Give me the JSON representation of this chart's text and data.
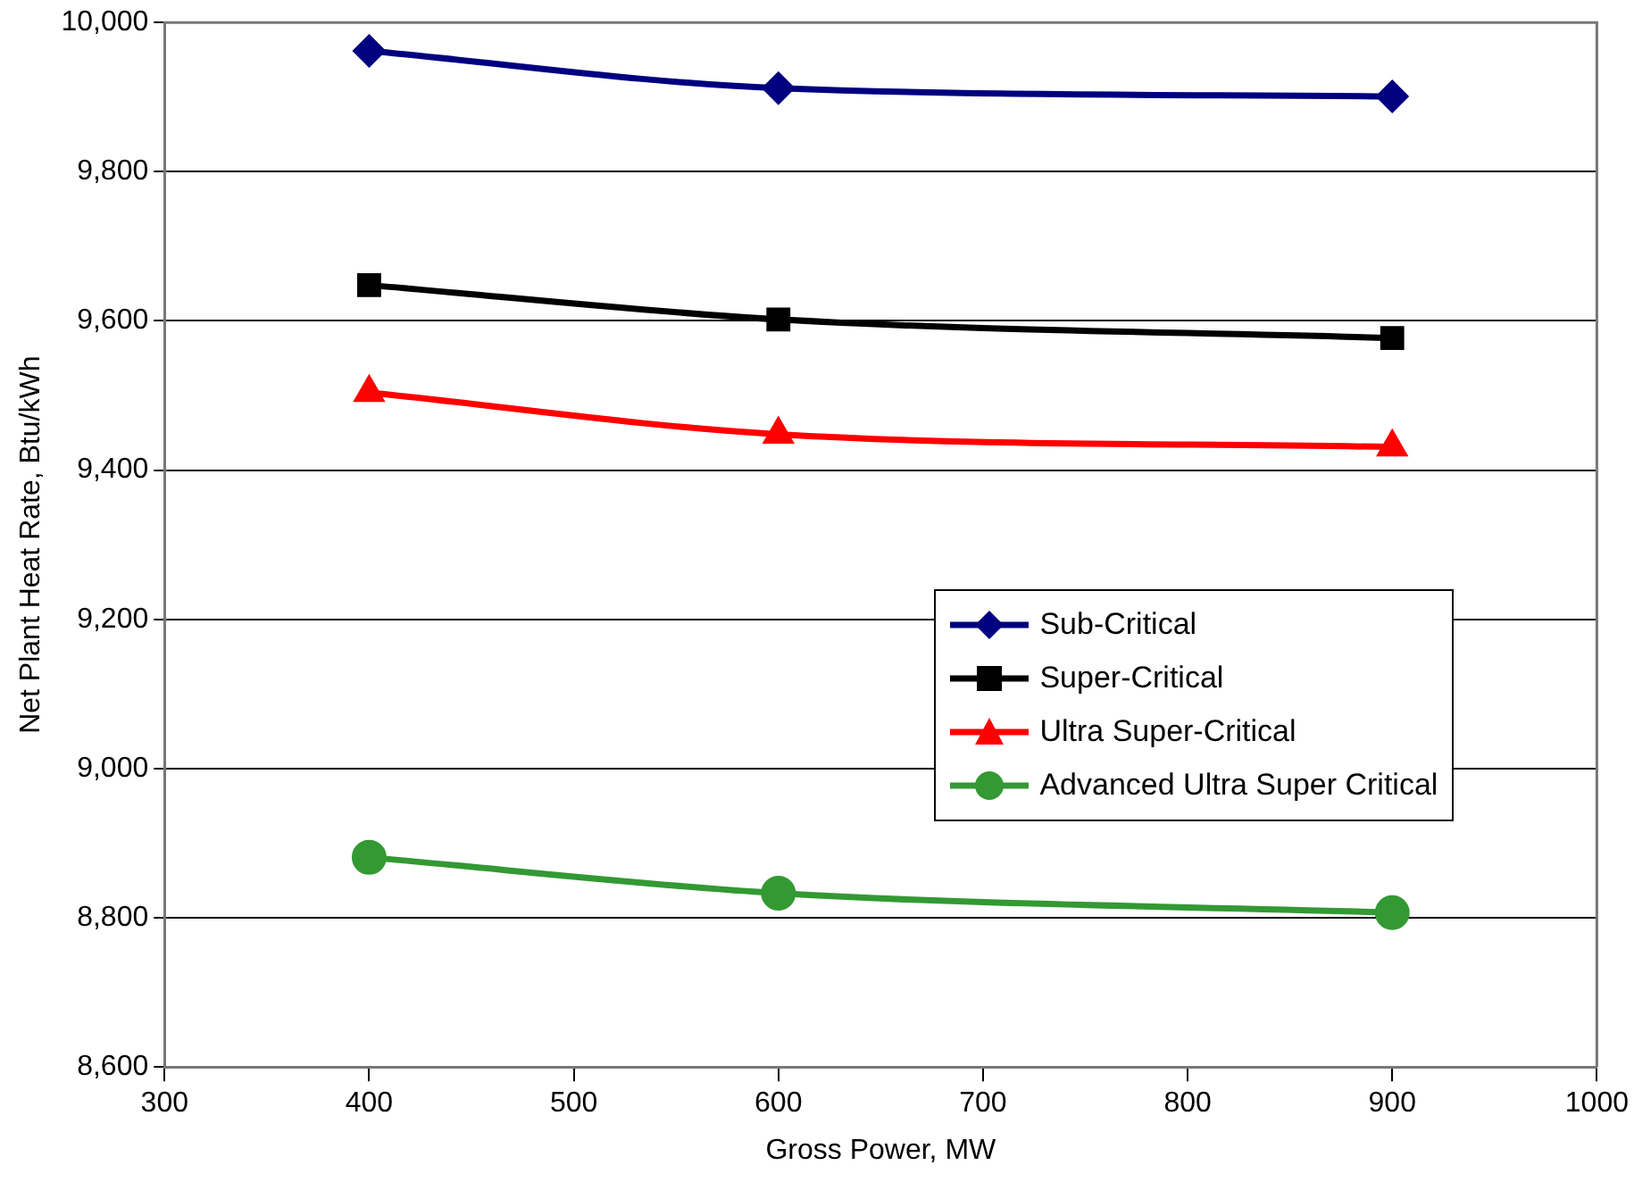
{
  "chart_data": {
    "type": "line",
    "xlabel": "Gross Power, MW",
    "ylabel": "Net Plant Heat Rate, Btu/kWh",
    "x": [
      400,
      600,
      900
    ],
    "series": [
      {
        "name": "Sub-Critical",
        "color": "#000080",
        "marker": "diamond",
        "values": [
          9962,
          9912,
          9901
        ]
      },
      {
        "name": "Super-Critical",
        "color": "#000000",
        "marker": "square",
        "values": [
          9648,
          9602,
          9577
        ]
      },
      {
        "name": "Ultra Super-Critical",
        "color": "#ff0000",
        "marker": "triangle",
        "values": [
          9504,
          9448,
          9431
        ]
      },
      {
        "name": "Advanced Ultra Super Critical",
        "color": "#339933",
        "marker": "circle",
        "values": [
          8881,
          8833,
          8807
        ]
      }
    ],
    "xlim": [
      300,
      1000
    ],
    "xticks": [
      300,
      400,
      500,
      600,
      700,
      800,
      900,
      1000
    ],
    "ylim": [
      8600,
      10000
    ],
    "yticks": [
      {
        "value": 8600,
        "label": "8,600"
      },
      {
        "value": 8800,
        "label": "8,800"
      },
      {
        "value": 9000,
        "label": "9,000"
      },
      {
        "value": 9200,
        "label": "9,200"
      },
      {
        "value": 9400,
        "label": "9,400"
      },
      {
        "value": 9600,
        "label": "9,600"
      },
      {
        "value": 9800,
        "label": "9,800"
      },
      {
        "value": 10000,
        "label": "10,000"
      }
    ],
    "grid": "y",
    "legend": "right"
  }
}
